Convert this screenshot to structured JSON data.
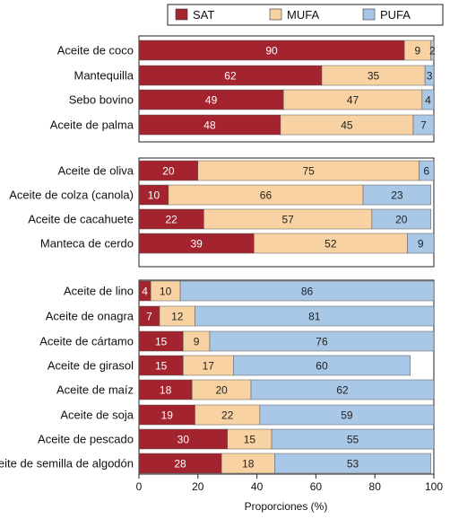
{
  "chart_data": {
    "type": "bar",
    "orientation": "horizontal",
    "stacked": true,
    "xlabel": "Proporciones (%)",
    "xlim": [
      0,
      100
    ],
    "xticks": [
      "0",
      "20",
      "40",
      "60",
      "80",
      "100"
    ],
    "legend": {
      "placement": "top",
      "entries": [
        {
          "name": "SAT",
          "color": "#a3232f"
        },
        {
          "name": "MUFA",
          "color": "#f8d2a2"
        },
        {
          "name": "PUFA",
          "color": "#a9c8e8"
        }
      ]
    },
    "groups": [
      {
        "categories": [
          "Aceite de coco",
          "Mantequilla",
          "Sebo bovino",
          "Aceite de palma"
        ],
        "series": [
          {
            "name": "SAT",
            "values": [
              90,
              62,
              49,
              48
            ]
          },
          {
            "name": "MUFA",
            "values": [
              9,
              35,
              47,
              45
            ]
          },
          {
            "name": "PUFA",
            "values": [
              2,
              3,
              4,
              7
            ]
          }
        ]
      },
      {
        "categories": [
          "Aceite de oliva",
          "Aceite de colza (canola)",
          "Aceite de cacahuete",
          "Manteca de cerdo"
        ],
        "series": [
          {
            "name": "SAT",
            "values": [
              20,
              10,
              22,
              39
            ]
          },
          {
            "name": "MUFA",
            "values": [
              75,
              66,
              57,
              52
            ]
          },
          {
            "name": "PUFA",
            "values": [
              6,
              23,
              20,
              9
            ]
          }
        ]
      },
      {
        "categories": [
          "Aceite de lino",
          "Aceite de onagra",
          "Aceite de cártamo",
          "Aceite de girasol",
          "Aceite de maíz",
          "Aceite de soja",
          "Aceite de pescado",
          "Aceite de semilla de algodón"
        ],
        "series": [
          {
            "name": "SAT",
            "values": [
              4,
              7,
              15,
              15,
              18,
              19,
              30,
              28
            ]
          },
          {
            "name": "MUFA",
            "values": [
              10,
              12,
              9,
              17,
              20,
              22,
              15,
              18
            ]
          },
          {
            "name": "PUFA",
            "values": [
              86,
              81,
              76,
              60,
              62,
              59,
              55,
              53
            ]
          }
        ]
      }
    ]
  }
}
